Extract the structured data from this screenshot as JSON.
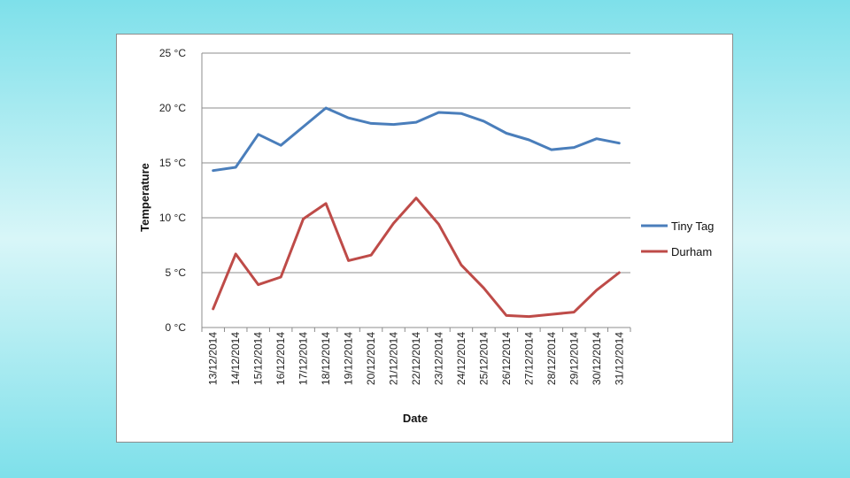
{
  "chart_data": {
    "type": "line",
    "title": "",
    "xlabel": "Date",
    "ylabel": "Temperature",
    "ylim": [
      0,
      25
    ],
    "yticks": [
      {
        "value": 0,
        "label": "0 °C"
      },
      {
        "value": 5,
        "label": "5 °C"
      },
      {
        "value": 10,
        "label": "10 °C"
      },
      {
        "value": 15,
        "label": "15 °C"
      },
      {
        "value": 20,
        "label": "20 °C"
      },
      {
        "value": 25,
        "label": "25 °C"
      }
    ],
    "grid": true,
    "legend_position": "right",
    "categories": [
      "13/12/2014",
      "14/12/2014",
      "15/12/2014",
      "16/12/2014",
      "17/12/2014",
      "18/12/2014",
      "19/12/2014",
      "20/12/2014",
      "21/12/2014",
      "22/12/2014",
      "23/12/2014",
      "24/12/2014",
      "25/12/2014",
      "26/12/2014",
      "27/12/2014",
      "28/12/2014",
      "29/12/2014",
      "30/12/2014",
      "31/12/2014"
    ],
    "series": [
      {
        "name": "Tiny Tag",
        "color": "#4a7ebb",
        "values": [
          14.3,
          14.6,
          17.6,
          16.6,
          18.3,
          20.0,
          19.1,
          18.6,
          18.5,
          18.7,
          19.6,
          19.5,
          18.8,
          17.7,
          17.1,
          16.2,
          16.4,
          17.2,
          16.8
        ]
      },
      {
        "name": "Durham",
        "color": "#be4b48",
        "values": [
          1.7,
          6.7,
          3.9,
          4.6,
          9.9,
          11.3,
          6.1,
          6.6,
          9.5,
          11.8,
          9.4,
          5.7,
          3.6,
          1.1,
          1.0,
          1.2,
          1.4,
          3.4,
          5.0
        ]
      }
    ]
  }
}
